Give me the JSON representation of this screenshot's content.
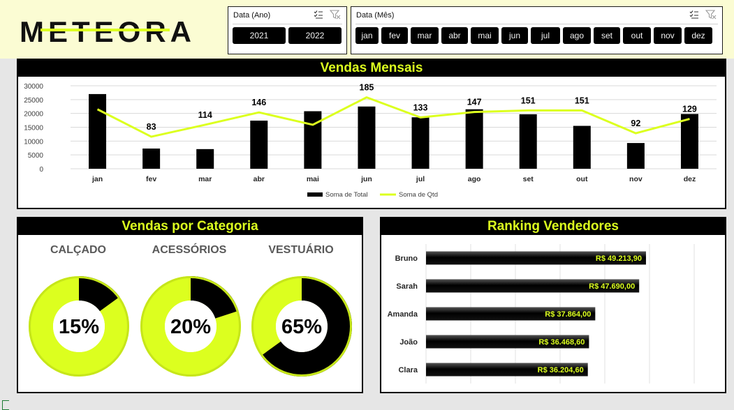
{
  "brand": {
    "logo_text": "METEORA"
  },
  "slicers": {
    "year": {
      "title": "Data (Ano)",
      "options": [
        "2021",
        "2022"
      ]
    },
    "month": {
      "title": "Data (Mês)",
      "options": [
        "jan",
        "fev",
        "mar",
        "abr",
        "mai",
        "jun",
        "jul",
        "ago",
        "set",
        "out",
        "nov",
        "dez"
      ]
    }
  },
  "panels": {
    "monthly": {
      "title": "Vendas Mensais"
    },
    "category": {
      "title": "Vendas por Categoria"
    },
    "ranking": {
      "title": "Ranking Vendedores"
    }
  },
  "colors": {
    "accent": "#dcff1f",
    "dark": "#000000",
    "header_bg": "#fbfcd3"
  },
  "chart_data": [
    {
      "type": "bar",
      "title": "Vendas Mensais",
      "categories": [
        "jan",
        "fev",
        "mar",
        "abr",
        "mai",
        "jun",
        "jul",
        "ago",
        "set",
        "out",
        "nov",
        "dez"
      ],
      "series": [
        {
          "name": "Soma de Total",
          "type": "bar",
          "values": [
            27000,
            7300,
            7100,
            17400,
            20800,
            22500,
            18600,
            21500,
            19700,
            15500,
            9300,
            19800
          ]
        },
        {
          "name": "Soma de Qtd",
          "type": "line",
          "values": [
            154,
            83,
            114,
            146,
            114,
            185,
            133,
            147,
            151,
            151,
            92,
            129
          ]
        }
      ],
      "yticks": [
        "30000",
        "25000",
        "20000",
        "15000",
        "10000",
        "5000",
        "0"
      ],
      "ylim": [
        0,
        30000
      ],
      "line_ylim": [
        0,
        215
      ],
      "legend": "bottom",
      "grid": true
    },
    {
      "type": "pie",
      "title": "Vendas por Categoria",
      "slices": [
        {
          "label": "CALÇADO",
          "value": 15,
          "display": "15%"
        },
        {
          "label": "ACESSÓRIOS",
          "value": 20,
          "display": "20%"
        },
        {
          "label": "VESTUÁRIO",
          "value": 65,
          "display": "65%"
        }
      ]
    },
    {
      "type": "bar",
      "orientation": "horizontal",
      "title": "Ranking Vendedores",
      "categories": [
        "Bruno",
        "Sarah",
        "Amanda",
        "João",
        "Clara"
      ],
      "values": [
        49213.9,
        47690.0,
        37864.0,
        36468.6,
        36204.6
      ],
      "value_labels": [
        "R$ 49.213,90",
        "R$ 47.690,00",
        "R$ 37.864,00",
        "R$ 36.468,60",
        "R$ 36.204,60"
      ],
      "xlim": [
        0,
        65000
      ],
      "grid": true
    }
  ]
}
